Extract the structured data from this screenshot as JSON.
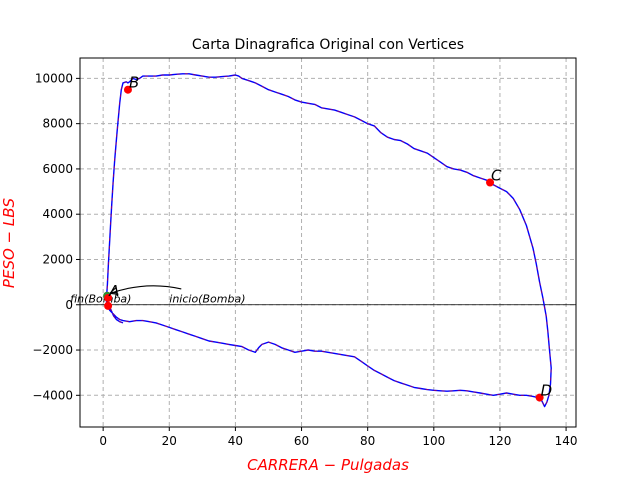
{
  "chart_data": {
    "type": "line",
    "title": "Carta Dinagrafica Original con Vertices",
    "xlabel": "CARRERA − Pulgadas",
    "ylabel": "PESO − LBS",
    "xlim": [
      -7,
      143
    ],
    "ylim": [
      -5400,
      10900
    ],
    "xticks": [
      0,
      20,
      40,
      60,
      80,
      100,
      120,
      140
    ],
    "yticks": [
      -4000,
      -2000,
      0,
      2000,
      4000,
      6000,
      8000,
      10000
    ],
    "grid": true,
    "colors": {
      "curve": "#0000ff",
      "curve_dash": "#ff0000",
      "vertex": "#ff0000",
      "start": "#2e8b2e",
      "zero_line": "#000000",
      "axis_label": "#ff0000"
    },
    "series": [
      {
        "x": [
          1,
          1,
          1.3,
          1.6,
          1.9,
          2.2,
          2.6,
          3,
          3.5,
          4.2,
          5,
          5.5,
          6,
          7,
          7.5,
          8,
          9,
          10,
          11,
          12,
          14,
          16,
          18,
          20,
          22,
          24,
          26,
          28,
          30,
          32,
          34,
          36,
          38,
          40,
          41,
          42,
          44,
          46,
          48,
          50,
          52,
          54,
          56,
          58,
          60,
          62,
          64,
          66,
          68,
          70,
          72,
          74,
          76,
          78,
          80,
          82,
          84,
          86,
          88,
          90,
          92,
          94,
          96,
          98,
          100,
          102,
          104,
          106,
          108,
          110,
          112,
          114,
          116,
          117,
          118,
          120,
          122,
          124,
          126,
          128,
          129,
          130,
          131,
          132,
          133,
          134,
          134.5,
          135,
          135.5,
          135.3,
          134.8,
          134.2,
          133.5,
          132.5,
          131.5,
          130,
          128,
          126,
          124,
          122,
          120,
          118,
          116,
          114,
          112,
          110,
          108,
          106,
          104,
          102,
          100,
          98,
          96,
          94,
          92,
          90,
          88,
          86,
          84,
          82,
          80,
          78,
          76,
          74,
          72,
          70,
          68,
          66,
          64,
          62,
          60,
          58,
          56,
          54,
          52,
          50,
          48,
          47,
          46,
          44,
          42,
          40,
          38,
          36,
          34,
          32,
          30,
          28,
          26,
          24,
          22,
          20,
          18,
          16,
          14,
          12,
          10,
          8,
          6,
          5,
          4,
          3,
          2,
          1.5,
          1.2,
          1,
          0.8,
          1,
          1.5,
          2,
          2.6,
          3.2,
          4,
          5,
          6
        ],
        "y": [
          0,
          300,
          900,
          1800,
          2600,
          3400,
          4400,
          5400,
          6400,
          7600,
          8900,
          9500,
          9800,
          9850,
          9800,
          9850,
          10000,
          9950,
          10000,
          10100,
          10100,
          10100,
          10150,
          10150,
          10180,
          10200,
          10200,
          10150,
          10100,
          10050,
          10050,
          10080,
          10100,
          10150,
          10100,
          10000,
          9900,
          9800,
          9650,
          9500,
          9400,
          9300,
          9200,
          9050,
          8950,
          8900,
          8850,
          8700,
          8650,
          8600,
          8500,
          8400,
          8300,
          8150,
          8000,
          7900,
          7600,
          7400,
          7300,
          7250,
          7100,
          6900,
          6800,
          6700,
          6500,
          6300,
          6100,
          6000,
          5950,
          5850,
          5700,
          5600,
          5500,
          5450,
          5300,
          5150,
          5000,
          4700,
          4200,
          3500,
          3000,
          2500,
          1800,
          1000,
          300,
          -500,
          -1200,
          -2000,
          -2800,
          -3500,
          -4000,
          -4300,
          -4500,
          -4200,
          -4100,
          -4050,
          -4000,
          -4000,
          -3950,
          -3900,
          -3950,
          -4000,
          -3950,
          -3900,
          -3850,
          -3800,
          -3780,
          -3800,
          -3820,
          -3800,
          -3780,
          -3750,
          -3700,
          -3650,
          -3550,
          -3450,
          -3350,
          -3200,
          -3050,
          -2900,
          -2700,
          -2500,
          -2300,
          -2250,
          -2200,
          -2150,
          -2100,
          -2050,
          -2050,
          -2000,
          -2050,
          -2100,
          -2000,
          -1900,
          -1750,
          -1650,
          -1750,
          -1900,
          -2100,
          -2000,
          -1850,
          -1800,
          -1750,
          -1700,
          -1650,
          -1600,
          -1500,
          -1400,
          -1300,
          -1200,
          -1100,
          -1000,
          -900,
          -800,
          -750,
          -700,
          -700,
          -750,
          -700,
          -650,
          -550,
          -400,
          -250,
          -100,
          0,
          200,
          500,
          300,
          100,
          -100,
          -300,
          -500,
          -650,
          -750,
          -800
        ]
      }
    ],
    "vertices": [
      {
        "name": "A",
        "x": 1.5,
        "y": 300
      },
      {
        "name": "B",
        "x": 7.5,
        "y": 9500
      },
      {
        "name": "C",
        "x": 117,
        "y": 5400
      },
      {
        "name": "D",
        "x": 132,
        "y": -4100
      }
    ],
    "extra_points": [
      {
        "x": 1.5,
        "y": -50,
        "color": "red"
      },
      {
        "x": 1.2,
        "y": 400,
        "color": "green"
      }
    ],
    "annotations": [
      {
        "text": "fin(Bomba)",
        "x": -10,
        "y": 50
      },
      {
        "text": "inicio(Bomba)",
        "x": 20,
        "y": 50,
        "arrow_to": [
          2,
          500
        ]
      }
    ]
  }
}
